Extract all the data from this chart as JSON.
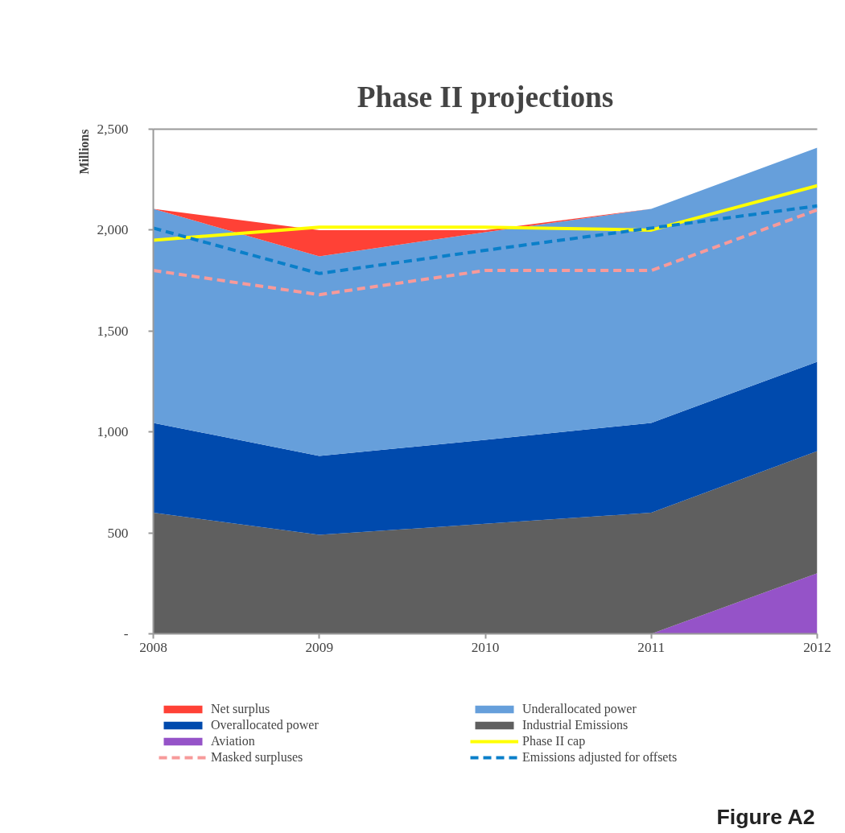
{
  "chart_data": {
    "type": "area",
    "title": "Phase II projections",
    "ylabel": "Millions",
    "stacked": true,
    "x": [
      2008,
      2009,
      2010,
      2011,
      2012
    ],
    "xlim": [
      2008,
      2012
    ],
    "xticks": [
      2008,
      2009,
      2010,
      2011,
      2012
    ],
    "ylim": [
      0,
      2500
    ],
    "yticks": [
      {
        "value": 0,
        "label": "-"
      },
      {
        "value": 500,
        "label": "500"
      },
      {
        "value": 1000,
        "label": "1,000"
      },
      {
        "value": 1500,
        "label": "1,500"
      },
      {
        "value": 2000,
        "label": "2,000"
      },
      {
        "value": 2500,
        "label": "2,500"
      }
    ],
    "grid": false,
    "legend": "bottom",
    "annotations": [
      "Figure A2"
    ],
    "series": [
      {
        "name": "Aviation",
        "color": "#9553c8",
        "values": [
          0,
          0,
          0,
          0,
          300
        ]
      },
      {
        "name": "Industrial Emissions",
        "color": "#5f5f5f",
        "values": [
          600,
          490,
          545,
          600,
          605
        ]
      },
      {
        "name": "Overallocated power",
        "color": "#004aad",
        "values": [
          445,
          391,
          416,
          445,
          443
        ]
      },
      {
        "name": "Underallocated power",
        "color": "#669fdb",
        "values": [
          1060,
          989,
          1029,
          1060,
          1060
        ]
      },
      {
        "name": "Net surplus",
        "color": "#ff4136",
        "values": [
          0,
          130,
          10,
          0,
          0
        ]
      },
      {
        "name": "Phase II cap",
        "type": "line",
        "color": "#ffff00",
        "line_style": "solid",
        "values": [
          1950,
          2015,
          2015,
          2000,
          2220
        ]
      },
      {
        "name": "Masked surpluses",
        "type": "line",
        "color": "#f79a9a",
        "line_style": "dashed",
        "values": [
          1800,
          1680,
          1800,
          1800,
          2100
        ]
      },
      {
        "name": "Emissions adjusted for offsets",
        "type": "line",
        "color": "#0a7fc9",
        "line_style": "dashed",
        "values": [
          2010,
          1785,
          1900,
          2010,
          2120
        ]
      }
    ]
  }
}
